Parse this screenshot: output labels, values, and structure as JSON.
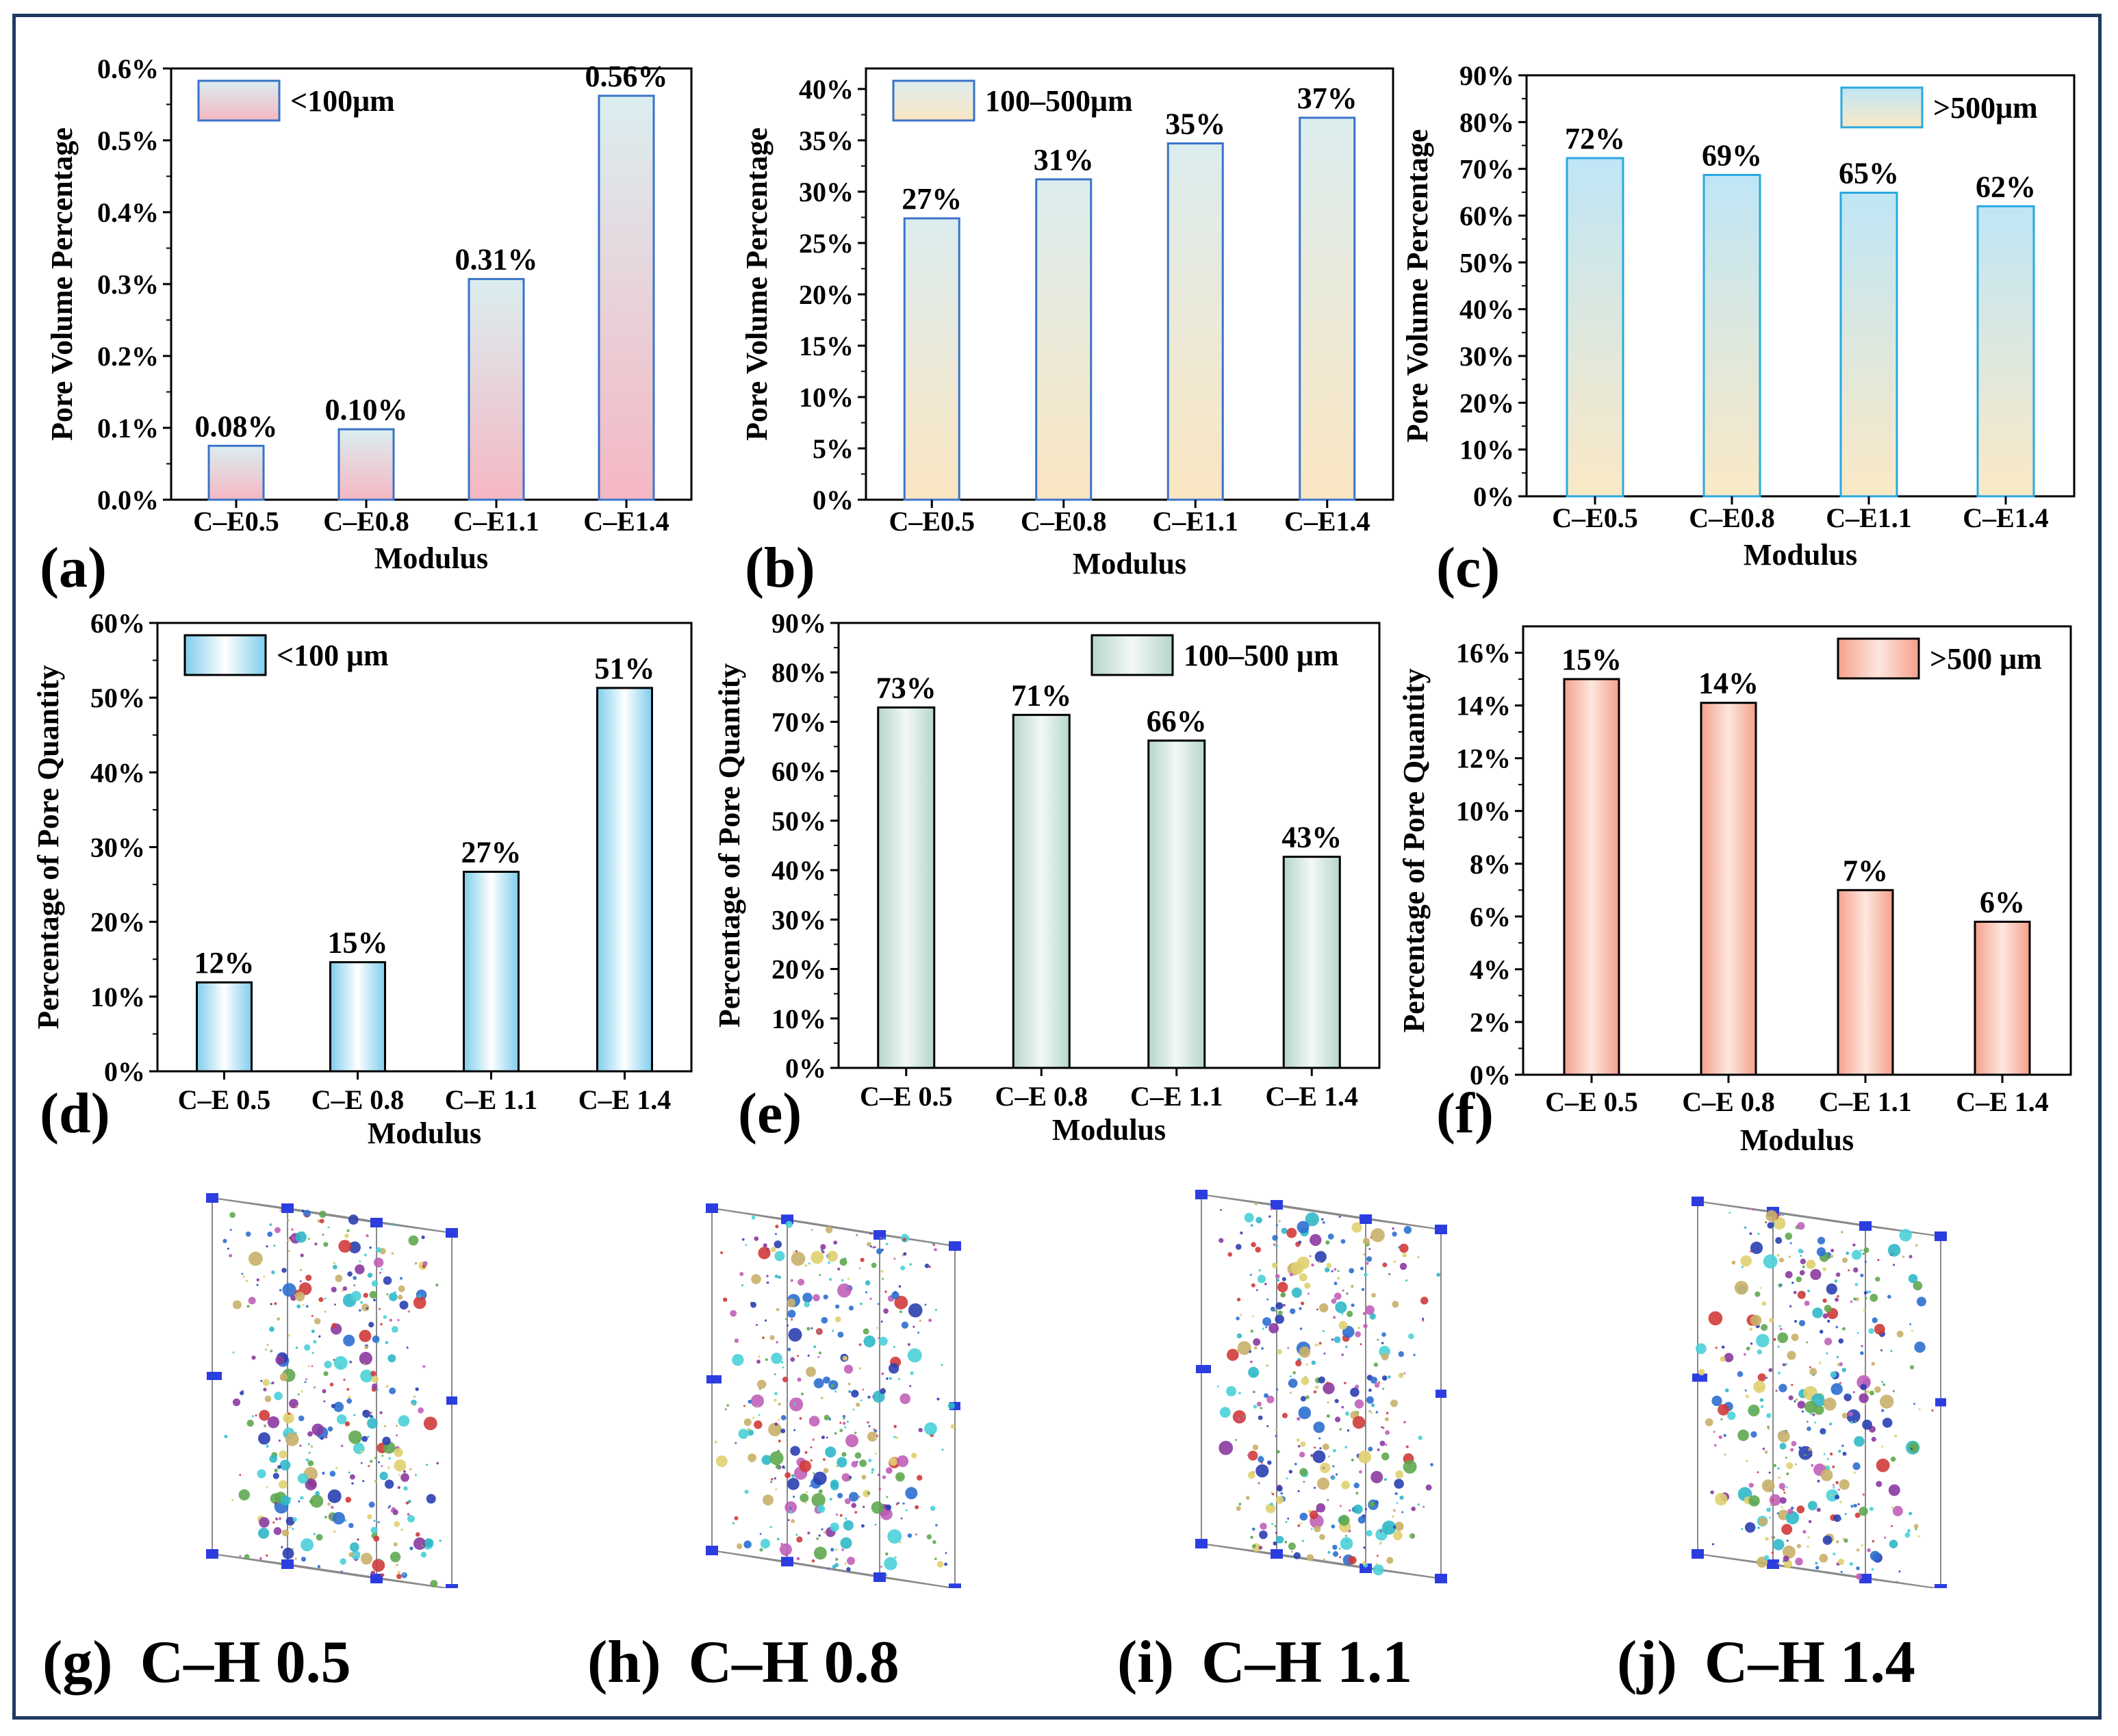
{
  "chart_data": [
    {
      "id": "a",
      "type": "bar",
      "panel_label": "(a)",
      "categories": [
        "C–E0.5",
        "C–E0.8",
        "C–E1.1",
        "C–E1.4"
      ],
      "values": [
        0.075,
        0.098,
        0.307,
        0.562
      ],
      "value_labels": [
        "0.08%",
        "0.10%",
        "0.31%",
        "0.56%"
      ],
      "yticks": [
        0,
        0.1,
        0.2,
        0.3,
        0.4,
        0.5,
        0.6
      ],
      "ytick_labels": [
        "0.0%",
        "0.1%",
        "0.2%",
        "0.3%",
        "0.4%",
        "0.5%",
        "0.6%"
      ],
      "ylim": [
        0,
        0.6
      ],
      "xlabel": "Modulus",
      "ylabel": "Pore Volume Percentage",
      "legend": "<100μm",
      "legend_position": "top-left",
      "gradient": "vertical",
      "colors": [
        "#dbeef0",
        "#f5b7c3"
      ],
      "border_color": "#3a73c9"
    },
    {
      "id": "b",
      "type": "bar",
      "panel_label": "(b)",
      "categories": [
        "C–E0.5",
        "C–E0.8",
        "C–E1.1",
        "C–E1.4"
      ],
      "values": [
        27.4,
        31.2,
        34.7,
        37.2
      ],
      "value_labels": [
        "27%",
        "31%",
        "35%",
        "37%"
      ],
      "yticks": [
        0,
        5,
        10,
        15,
        20,
        25,
        30,
        35,
        40
      ],
      "ytick_labels": [
        "0%",
        "5%",
        "10%",
        "15%",
        "20%",
        "25%",
        "30%",
        "35%",
        "40%"
      ],
      "ylim": [
        0,
        42
      ],
      "xlabel": "Modulus",
      "ylabel": "Pore Volume Percentage",
      "legend": "100–500μm",
      "legend_position": "top-left",
      "gradient": "vertical",
      "colors": [
        "#dcedef",
        "#fbe6c2"
      ],
      "border_color": "#3a73c9"
    },
    {
      "id": "c",
      "type": "bar",
      "panel_label": "(c)",
      "categories": [
        "C–E0.5",
        "C–E0.8",
        "C–E1.1",
        "C–E1.4"
      ],
      "values": [
        72.3,
        68.7,
        64.9,
        62.0
      ],
      "value_labels": [
        "72%",
        "69%",
        "65%",
        "62%"
      ],
      "yticks": [
        0,
        10,
        20,
        30,
        40,
        50,
        60,
        70,
        80,
        90
      ],
      "ytick_labels": [
        "0%",
        "10%",
        "20%",
        "30%",
        "40%",
        "50%",
        "60%",
        "70%",
        "80%",
        "90%"
      ],
      "ylim": [
        0,
        90
      ],
      "xlabel": "Modulus",
      "ylabel": "Pore Volume Percentage",
      "legend": ">500μm",
      "legend_position": "top-right",
      "gradient": "vertical",
      "colors": [
        "#bfe6f6",
        "#fbe9c6"
      ],
      "border_color": "#29a8e0"
    },
    {
      "id": "d",
      "type": "bar",
      "panel_label": "(d)",
      "categories": [
        "C–E 0.5",
        "C–E 0.8",
        "C–E 1.1",
        "C–E 1.4"
      ],
      "values": [
        11.9,
        14.6,
        26.7,
        51.3
      ],
      "value_labels": [
        "12%",
        "15%",
        "27%",
        "51%"
      ],
      "yticks": [
        0,
        10,
        20,
        30,
        40,
        50,
        60
      ],
      "ytick_labels": [
        "0%",
        "10%",
        "20%",
        "30%",
        "40%",
        "50%",
        "60%"
      ],
      "ylim": [
        0,
        60
      ],
      "xlabel": "Modulus",
      "ylabel": "Percentage of Pore Quantity",
      "legend": "<100 μm",
      "legend_position": "top-left",
      "gradient": "horizontal",
      "colors": [
        "#7fcdec",
        "#ffffff"
      ],
      "border_color": "#000000"
    },
    {
      "id": "e",
      "type": "bar",
      "panel_label": "(e)",
      "categories": [
        "C–E 0.5",
        "C–E 0.8",
        "C–E 1.1",
        "C–E 1.4"
      ],
      "values": [
        72.9,
        71.4,
        66.2,
        42.7
      ],
      "value_labels": [
        "73%",
        "71%",
        "66%",
        "43%"
      ],
      "yticks": [
        0,
        10,
        20,
        30,
        40,
        50,
        60,
        70,
        80,
        90
      ],
      "ytick_labels": [
        "0%",
        "10%",
        "20%",
        "30%",
        "40%",
        "50%",
        "60%",
        "70%",
        "80%",
        "90%"
      ],
      "ylim": [
        0,
        90
      ],
      "xlabel": "Modulus",
      "ylabel": "Percentage of Pore Quantity",
      "legend": "100–500 μm",
      "legend_position": "top-right",
      "gradient": "horizontal",
      "colors": [
        "#b5d6cc",
        "#f3f8f6"
      ],
      "border_color": "#000000"
    },
    {
      "id": "f",
      "type": "bar",
      "panel_label": "(f)",
      "categories": [
        "C–E 0.5",
        "C–E 0.8",
        "C–E 1.1",
        "C–E 1.4"
      ],
      "values": [
        15.0,
        14.1,
        7.0,
        5.8
      ],
      "value_labels": [
        "15%",
        "14%",
        "7%",
        "6%"
      ],
      "yticks": [
        0,
        2,
        4,
        6,
        8,
        10,
        12,
        14,
        16
      ],
      "ytick_labels": [
        "0%",
        "2%",
        "4%",
        "6%",
        "8%",
        "10%",
        "12%",
        "14%",
        "16%"
      ],
      "ylim": [
        0,
        17
      ],
      "xlabel": "Modulus",
      "ylabel": "Percentage of Pore Quantity",
      "legend": ">500 μm",
      "legend_position": "top-right",
      "gradient": "horizontal",
      "colors": [
        "#f5a08c",
        "#fde7df"
      ],
      "border_color": "#000000"
    }
  ],
  "renderings": [
    {
      "letter": "(g)",
      "label": "C–H 0.5"
    },
    {
      "letter": "(h)",
      "label": "C–H 0.8"
    },
    {
      "letter": "(i)",
      "label": "C–H 1.1"
    },
    {
      "letter": "(j)",
      "label": "C–H 1.4"
    }
  ],
  "pore_colors": [
    "#2a3fb0",
    "#30b8c8",
    "#c9b06a",
    "#c060b8",
    "#5fa850",
    "#2d6fd0",
    "#e0d070",
    "#8a3aa0",
    "#d03a3a",
    "#4ad0d8"
  ]
}
